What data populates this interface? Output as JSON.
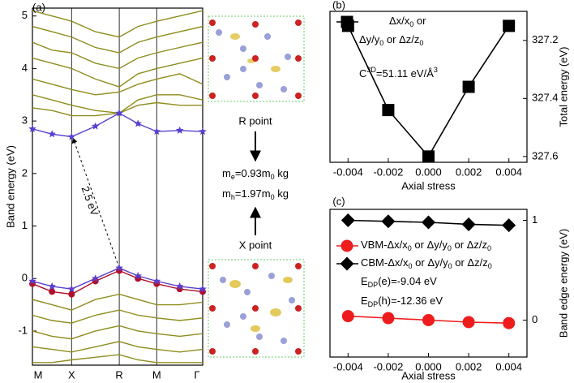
{
  "chart_data": [
    {
      "type": "line",
      "panel_label": "(a)",
      "y_label": "Band energy (eV)",
      "xlim": [
        0,
        1
      ],
      "xticks": [
        {
          "value": 0,
          "label": "M"
        },
        {
          "value": 0.23,
          "label": "X"
        },
        {
          "value": 0.51,
          "label": "R"
        },
        {
          "value": 0.73,
          "label": "M"
        },
        {
          "value": 1,
          "label": "Γ"
        }
      ],
      "ylim": [
        -1.65,
        5.15
      ],
      "yticks": [
        -1,
        0,
        1,
        2,
        3,
        4,
        5
      ],
      "grid": true,
      "x": [
        0,
        0.115,
        0.23,
        0.37,
        0.51,
        0.62,
        0.73,
        0.865,
        1
      ],
      "series": [
        {
          "color": "#8f8c1e",
          "values": [
            3.25,
            3.2,
            3.1,
            3.1,
            3.15,
            3.3,
            3.35,
            3.3,
            3.3
          ]
        },
        {
          "color": "#8f8c1e",
          "values": [
            3.5,
            3.4,
            3.3,
            3.2,
            3.15,
            3.4,
            3.5,
            3.5,
            3.4
          ]
        },
        {
          "color": "#8f8c1e",
          "values": [
            3.8,
            3.7,
            3.6,
            3.5,
            3.55,
            3.7,
            3.8,
            3.9,
            3.7
          ]
        },
        {
          "color": "#8f8c1e",
          "values": [
            4.2,
            4.1,
            4.0,
            3.8,
            3.65,
            3.9,
            4.0,
            4.1,
            4.2
          ]
        },
        {
          "color": "#8f8c1e",
          "values": [
            4.5,
            4.35,
            4.3,
            4.1,
            4.0,
            4.2,
            4.3,
            4.4,
            4.5
          ]
        },
        {
          "color": "#8f8c1e",
          "values": [
            4.8,
            4.7,
            4.6,
            4.4,
            4.3,
            4.5,
            4.6,
            4.7,
            4.8
          ]
        },
        {
          "color": "#8f8c1e",
          "values": [
            5.1,
            5.0,
            4.9,
            4.7,
            4.6,
            4.8,
            4.9,
            5.0,
            5.1
          ]
        },
        {
          "color": "#8f8c1e",
          "values": [
            -0.4,
            -0.5,
            -0.6,
            -0.4,
            -0.3,
            -0.4,
            -0.5,
            -0.5,
            -0.45
          ]
        },
        {
          "color": "#8f8c1e",
          "values": [
            -0.7,
            -0.8,
            -0.85,
            -0.7,
            -0.6,
            -0.7,
            -0.75,
            -0.8,
            -0.75
          ]
        },
        {
          "color": "#8f8c1e",
          "values": [
            -1.0,
            -1.1,
            -1.15,
            -1.0,
            -0.9,
            -1.0,
            -1.05,
            -1.1,
            -1.05
          ]
        },
        {
          "color": "#8f8c1e",
          "values": [
            -1.3,
            -1.35,
            -1.4,
            -1.3,
            -1.2,
            -1.3,
            -1.35,
            -1.4,
            -1.35
          ]
        },
        {
          "color": "#8f8c1e",
          "values": [
            -1.6,
            -1.6,
            -1.55,
            -1.5,
            -1.45,
            -1.55,
            -1.6,
            -1.6,
            -1.6
          ]
        },
        {
          "color": "#b0102a",
          "marker": "circle",
          "values": [
            -0.1,
            -0.25,
            -0.3,
            -0.05,
            0.15,
            0.0,
            -0.1,
            -0.2,
            -0.25
          ]
        },
        {
          "color": "#5a3fd0",
          "marker": "star",
          "values": [
            -0.05,
            -0.15,
            -0.2,
            0.0,
            0.2,
            0.05,
            -0.05,
            -0.15,
            -0.2
          ]
        },
        {
          "color": "#5a3fd0",
          "marker": "star",
          "values": [
            2.85,
            2.75,
            2.7,
            2.9,
            3.15,
            2.95,
            2.8,
            2.82,
            2.8
          ]
        }
      ],
      "annotations": {
        "gap": "2.5 eV",
        "r_point": "R point",
        "x_point": "X point",
        "m_e": [
          "m",
          "e",
          "=0.93m",
          "0",
          " kg"
        ],
        "m_h": [
          "m",
          "h",
          "=1.97m",
          "0",
          " kg"
        ]
      }
    },
    {
      "type": "scatter",
      "panel_label": "(b)",
      "x_label": "Axial stress",
      "y_label": "Total energy (eV)",
      "xlim": [
        -0.0049,
        0.0049
      ],
      "xticks": [
        -0.004,
        -0.002,
        {
          "value": 0,
          "label": "0.000"
        },
        0.002,
        0.004
      ],
      "ylim": [
        327.62,
        327.1
      ],
      "yticks": [
        327.2,
        327.4,
        327.6
      ],
      "x": [
        -0.004,
        -0.002,
        0,
        0.002,
        0.004
      ],
      "series": [
        {
          "name": [
            [
              "Δx/x",
              "0",
              " or"
            ],
            [
              "Δy/y",
              "0",
              " or Δz/z",
              "0"
            ]
          ],
          "color": "#000000",
          "marker": "square",
          "values": [
            327.15,
            327.44,
            327.6,
            327.36,
            327.15
          ]
        }
      ],
      "annotations": {
        "c3d": [
          "C",
          "3D",
          "=51.11 eV/Å",
          "3"
        ]
      }
    },
    {
      "type": "scatter",
      "panel_label": "(c)",
      "x_label": "Axial stress",
      "y_label": "Band edge energy (eV)",
      "xlim": [
        -0.0049,
        0.0049
      ],
      "xticks": [
        -0.004,
        -0.002,
        {
          "value": 0,
          "label": "0.000"
        },
        0.002,
        0.004
      ],
      "ylim": [
        -0.37,
        1.11
      ],
      "yticks": [
        0,
        1
      ],
      "x": [
        -0.004,
        -0.002,
        0,
        0.002,
        0.004
      ],
      "series": [
        {
          "name": [
            "VBM-Δx/x",
            "0",
            " or Δy/y",
            "0",
            " or Δz/z",
            "0"
          ],
          "color": "#ee1c1c",
          "marker": "circle",
          "values": [
            0.04,
            0.02,
            0.0,
            -0.02,
            -0.03
          ]
        },
        {
          "name": [
            "CBM-Δx/x",
            "0",
            " or Δy/y",
            "0",
            " or Δz/z",
            "0"
          ],
          "color": "#000000",
          "marker": "diamond",
          "values": [
            1.0,
            0.99,
            0.98,
            0.96,
            0.95
          ]
        }
      ],
      "annotations": {
        "edp_e": [
          "E",
          "DP",
          "(e)=-9.04 eV"
        ],
        "edp_h": [
          "E",
          "DP",
          "(h)=-12.36 eV"
        ]
      }
    }
  ]
}
